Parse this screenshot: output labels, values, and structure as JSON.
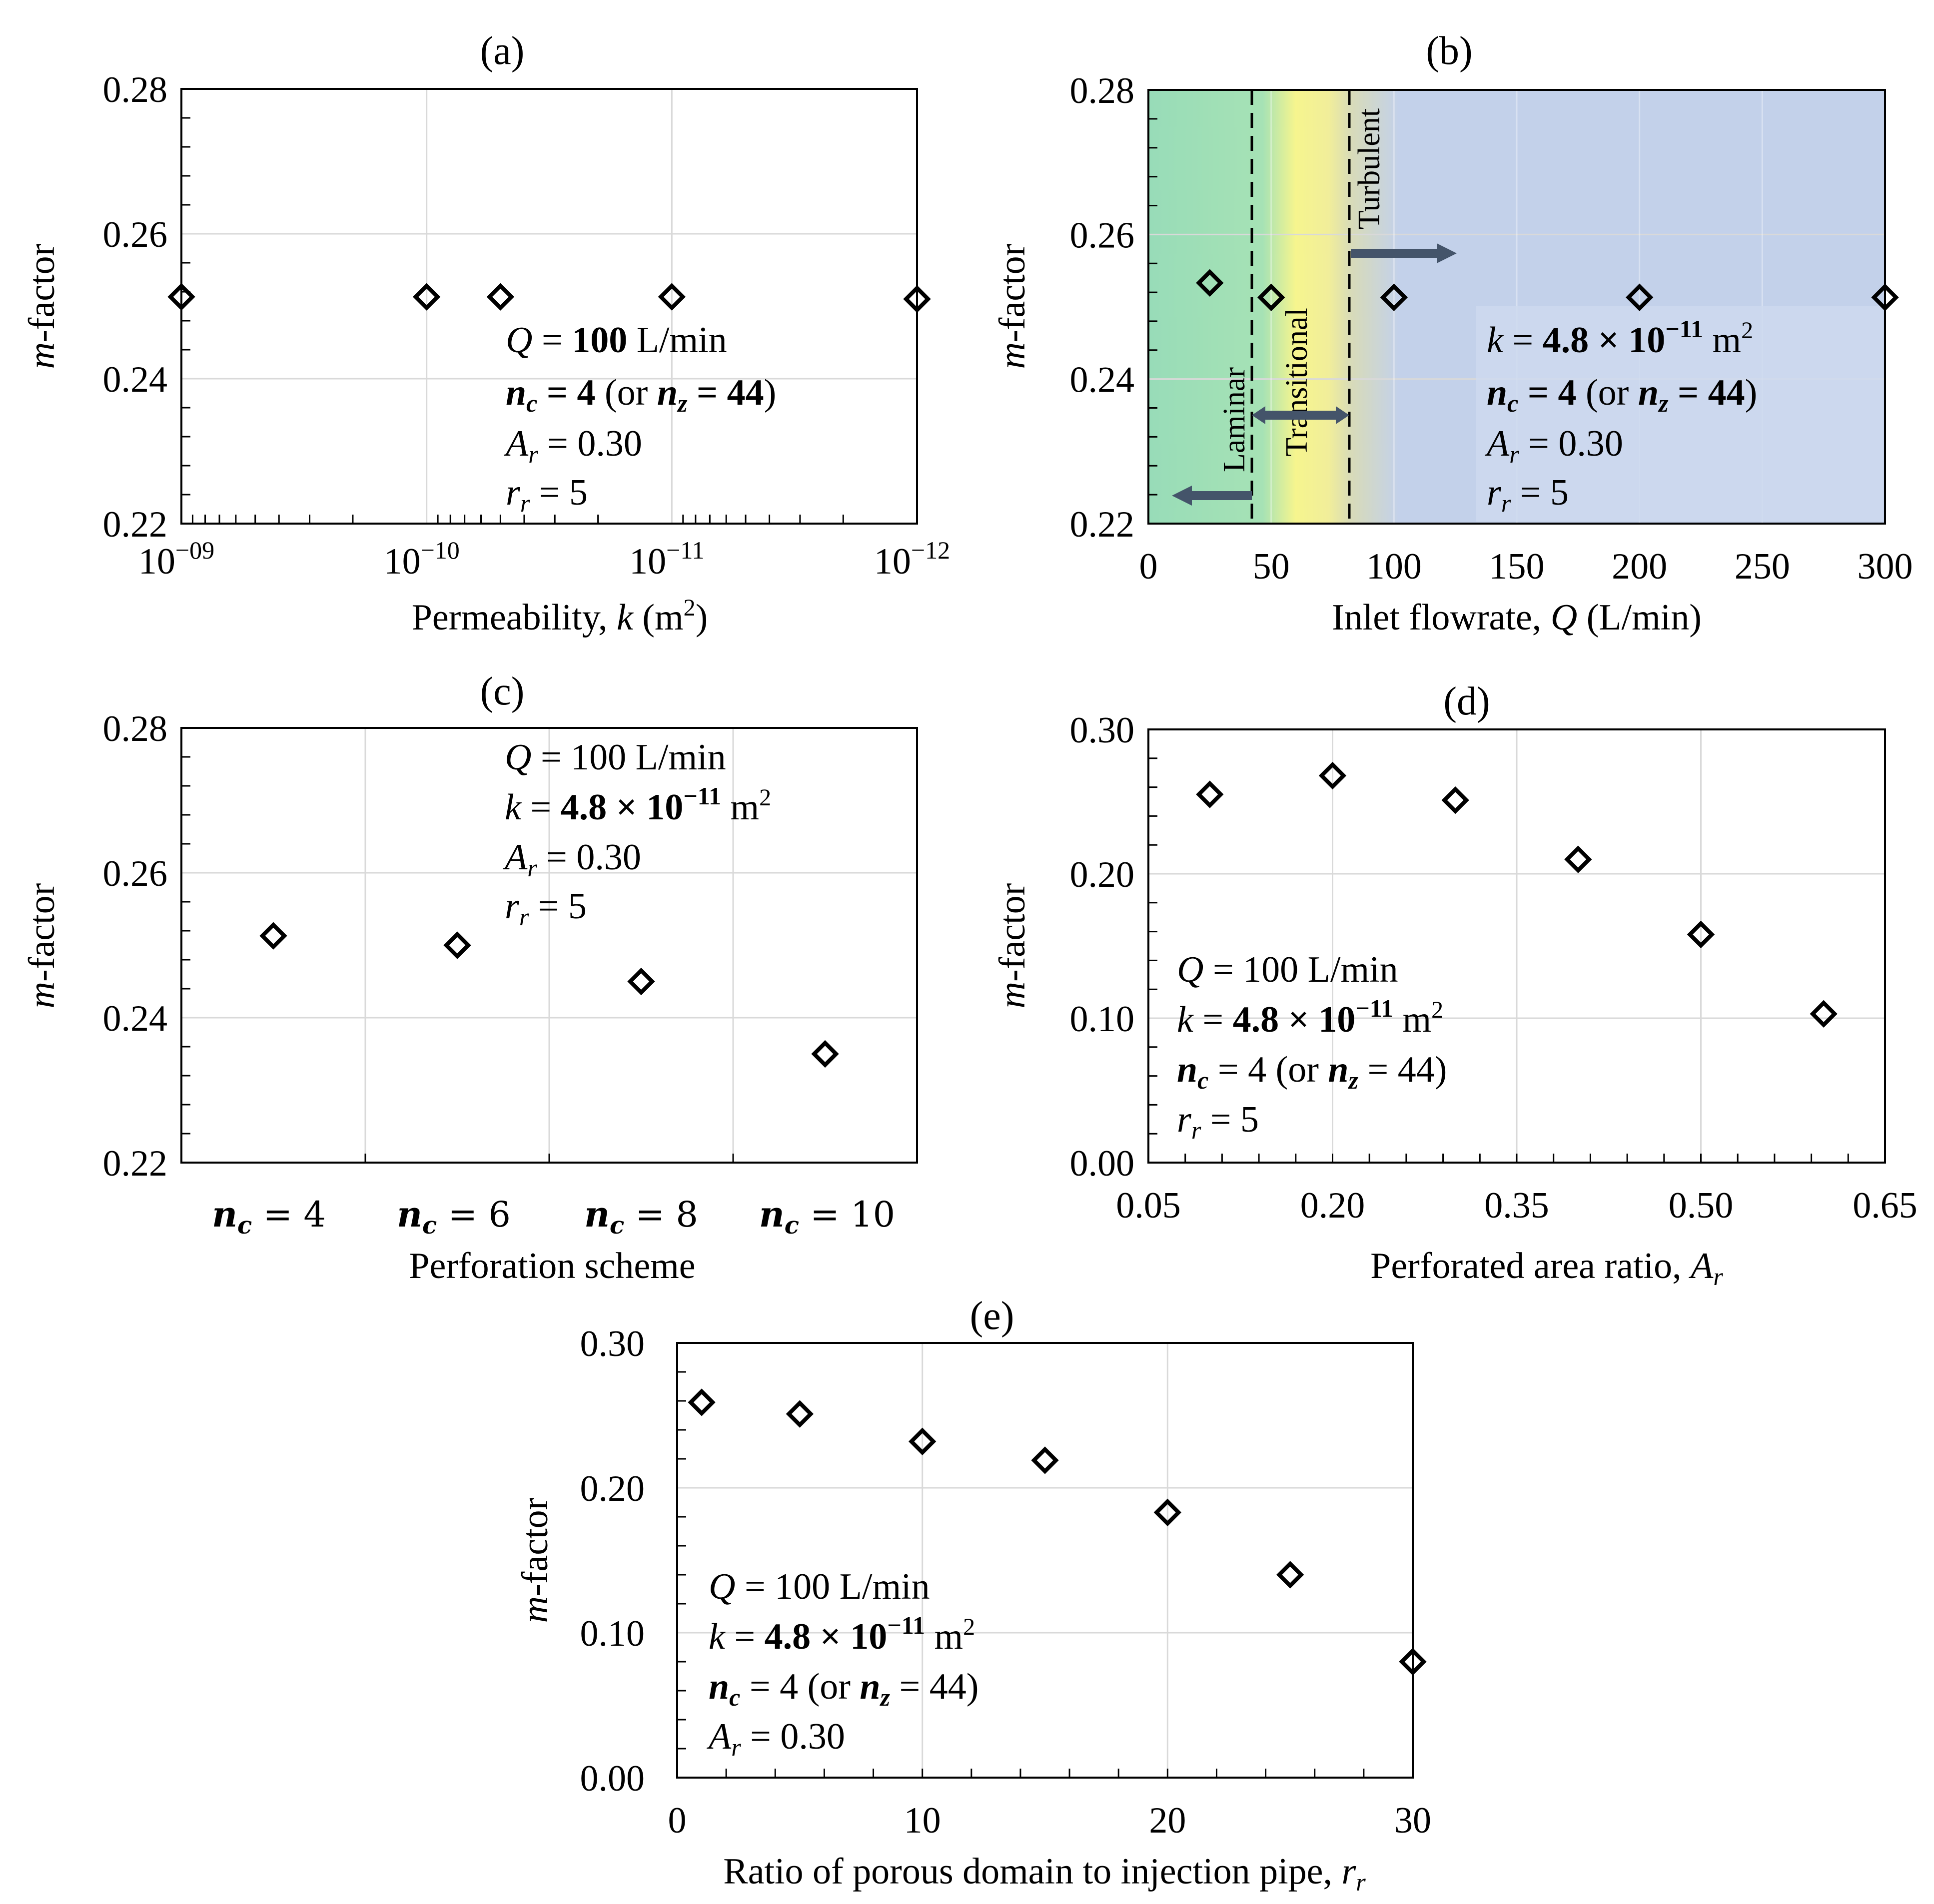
{
  "colors": {
    "axis": "#000000",
    "grid": "#d9d9d9",
    "laminar": "#98dcb8",
    "transitional": "#f6f58e",
    "turbulent": "#c3d1ea",
    "arrow": "#44546a"
  },
  "chart_data": [
    {
      "id": "a",
      "type": "scatter",
      "title": "(a)",
      "xlabel": "Permeability, k (m²)",
      "ylabel": "m-factor",
      "x_scale": "log-reversed",
      "xlim": [
        1e-09,
        1e-12
      ],
      "ylim": [
        0.22,
        0.28
      ],
      "x_ticks": [
        1e-09,
        1e-10,
        1e-11,
        1e-12
      ],
      "x_tick_labels": [
        {
          "base": "10",
          "exp": "−09"
        },
        {
          "base": "10",
          "exp": "−10"
        },
        {
          "base": "10",
          "exp": "−11"
        },
        {
          "base": "10",
          "exp": "−12"
        }
      ],
      "y_ticks": [
        0.22,
        0.24,
        0.26,
        0.28
      ],
      "y_tick_labels": [
        "0.22",
        "0.24",
        "0.26",
        "0.28"
      ],
      "x": [
        1e-09,
        1e-10,
        5e-11,
        1e-11,
        1e-12
      ],
      "y": [
        0.2513,
        0.2513,
        0.2513,
        0.2513,
        0.251
      ],
      "annotation": [
        {
          "var": "Q",
          "rest": " = 100 L/min"
        },
        {
          "var": "n_c",
          "rest": " = 4 (or n_z = 44)"
        },
        {
          "var": "A_r",
          "rest": " = 0.30"
        },
        {
          "var": "r_r",
          "rest": " = 5"
        }
      ]
    },
    {
      "id": "b",
      "type": "scatter",
      "title": "(b)",
      "xlabel": "Inlet flowrate, Q (L/min)",
      "ylabel": "m-factor",
      "xlim": [
        0,
        300
      ],
      "ylim": [
        0.22,
        0.28
      ],
      "x_ticks": [
        0,
        50,
        100,
        150,
        200,
        250,
        300
      ],
      "x_tick_labels": [
        "0",
        "50",
        "100",
        "150",
        "200",
        "250",
        "300"
      ],
      "y_ticks": [
        0.22,
        0.24,
        0.26,
        0.28
      ],
      "y_tick_labels": [
        "0.22",
        "0.24",
        "0.26",
        "0.28"
      ],
      "x": [
        25,
        50,
        100,
        200,
        300
      ],
      "y": [
        0.2533,
        0.2513,
        0.2513,
        0.2513,
        0.2513
      ],
      "regions": [
        {
          "name": "Laminar",
          "from": 0,
          "to": 42
        },
        {
          "name": "Transitional",
          "from": 42,
          "to": 82
        },
        {
          "name": "Turbulent",
          "from": 82,
          "to": 300
        }
      ],
      "annotation": [
        {
          "var": "k",
          "rest": " = 4.8 × 10⁻¹¹ m²"
        },
        {
          "var": "n_c",
          "rest": " = 4 (or n_z = 44)"
        },
        {
          "var": "A_r",
          "rest": " = 0.30"
        },
        {
          "var": "r_r",
          "rest": " = 5"
        }
      ]
    },
    {
      "id": "c",
      "type": "scatter",
      "title": "(c)",
      "xlabel": "Perforation scheme",
      "ylabel": "m-factor",
      "categories": [
        "n_c = 4",
        "n_c = 6",
        "n_c = 8",
        "n_c = 10"
      ],
      "ylim": [
        0.22,
        0.28
      ],
      "y_ticks": [
        0.22,
        0.24,
        0.26,
        0.28
      ],
      "y_tick_labels": [
        "0.22",
        "0.24",
        "0.26",
        "0.28"
      ],
      "values": [
        0.2513,
        0.25,
        0.245,
        0.235
      ],
      "annotation": [
        {
          "var": "Q",
          "rest": " = 100 L/min"
        },
        {
          "var": "k",
          "rest": " = 4.8 × 10⁻¹¹ m²"
        },
        {
          "var": "A_r",
          "rest": " = 0.30"
        },
        {
          "var": "r_r",
          "rest": " = 5"
        }
      ]
    },
    {
      "id": "d",
      "type": "scatter",
      "title": "(d)",
      "xlabel": "Perforated area ratio, A_r",
      "ylabel": "m-factor",
      "xlim": [
        0.05,
        0.65
      ],
      "ylim": [
        0.0,
        0.3
      ],
      "x_ticks": [
        0.05,
        0.2,
        0.35,
        0.5,
        0.65
      ],
      "x_tick_labels": [
        "0.05",
        "0.20",
        "0.35",
        "0.50",
        "0.65"
      ],
      "y_ticks": [
        0.0,
        0.1,
        0.2,
        0.3
      ],
      "y_tick_labels": [
        "0.00",
        "0.10",
        "0.20",
        "0.30"
      ],
      "x": [
        0.1,
        0.2,
        0.3,
        0.4,
        0.5,
        0.6
      ],
      "y": [
        0.255,
        0.268,
        0.251,
        0.21,
        0.158,
        0.103
      ],
      "annotation": [
        {
          "var": "Q",
          "rest": " = 100 L/min"
        },
        {
          "var": "k",
          "rest": " = 4.8 × 10⁻¹¹ m²"
        },
        {
          "var": "n_c",
          "rest": " = 4 (or n_z = 44)"
        },
        {
          "var": "r_r",
          "rest": " = 5"
        }
      ]
    },
    {
      "id": "e",
      "type": "scatter",
      "title": "(e)",
      "xlabel": "Ratio of porous domain to injection pipe, r_r",
      "ylabel": "m-factor",
      "xlim": [
        0,
        30
      ],
      "ylim": [
        0.0,
        0.3
      ],
      "x_ticks": [
        0,
        10,
        20,
        30
      ],
      "x_tick_labels": [
        "0",
        "10",
        "20",
        "30"
      ],
      "y_ticks": [
        0.0,
        0.1,
        0.2,
        0.3
      ],
      "y_tick_labels": [
        "0.00",
        "0.10",
        "0.20",
        "0.30"
      ],
      "x": [
        1,
        5,
        10,
        15,
        20,
        25,
        30
      ],
      "y": [
        0.259,
        0.251,
        0.232,
        0.219,
        0.183,
        0.14,
        0.08
      ],
      "annotation": [
        {
          "var": "Q",
          "rest": " = 100 L/min"
        },
        {
          "var": "k",
          "rest": " = 4.8 × 10⁻¹¹ m²"
        },
        {
          "var": "n_c",
          "rest": " = 4 (or n_z = 44)"
        },
        {
          "var": "A_r",
          "rest": " = 0.30"
        }
      ]
    }
  ]
}
